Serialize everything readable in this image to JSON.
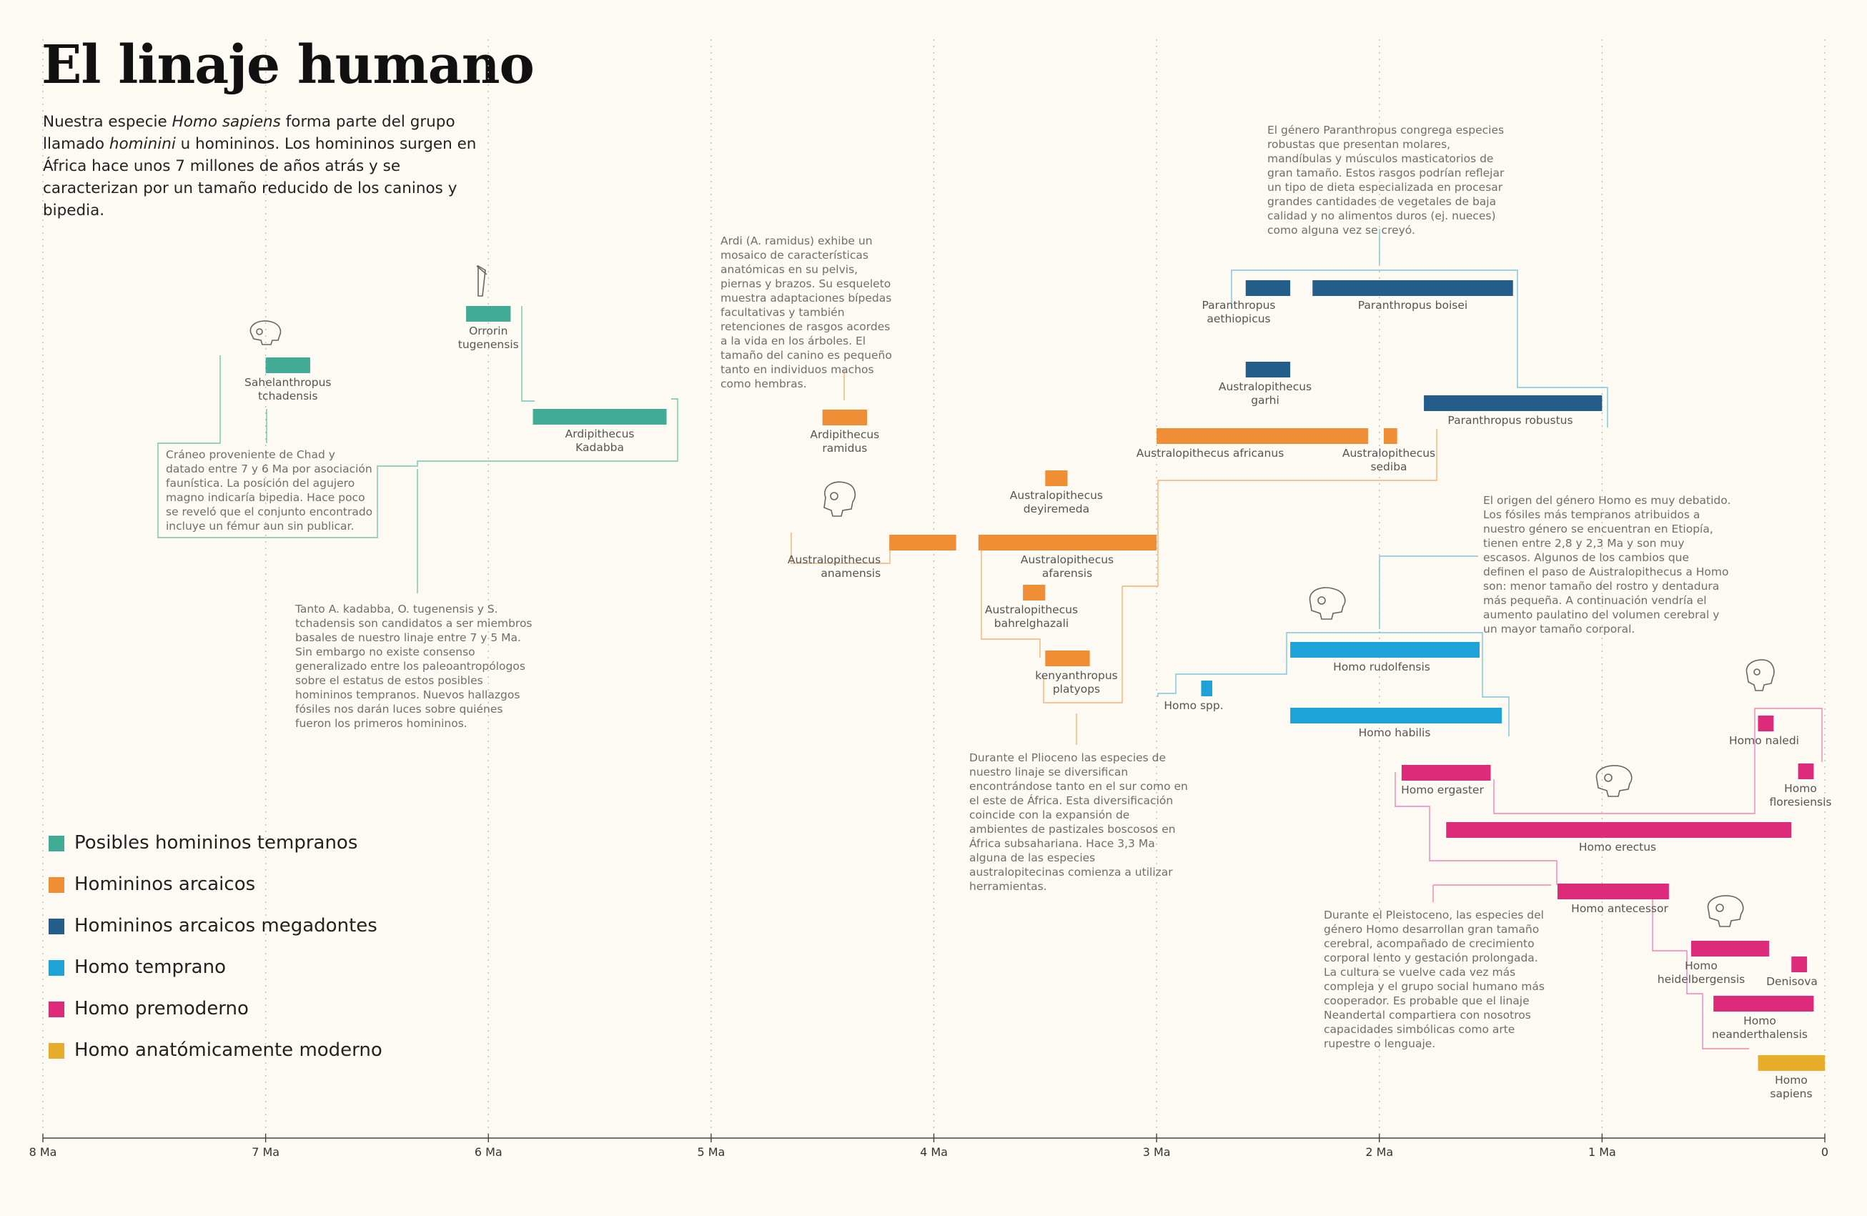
{
  "title": "El linaje humano",
  "intro": {
    "p1": "Nuestra especie ",
    "em1": "Homo sapiens",
    "p2": " forma parte del grupo llamado ",
    "em2": "hominini",
    "p3": " u homininos. Los homininos surgen en África hace unos 7 millones de años atrás y se caracterizan por un tamaño reducido de los caninos y bipedia."
  },
  "colors": {
    "early": "#41ab96",
    "archaic": "#f08e36",
    "megadont": "#245d8a",
    "early_homo": "#1ea3d9",
    "premodern": "#dd2a7b",
    "modern": "#e9ad2c"
  },
  "legend": [
    {
      "label": "Posibles homininos tempranos",
      "color_key": "early"
    },
    {
      "label": "Homininos arcaicos",
      "color_key": "archaic"
    },
    {
      "label": "Homininos arcaicos megadontes",
      "color_key": "megadont"
    },
    {
      "label": "Homo temprano",
      "color_key": "early_homo"
    },
    {
      "label": "Homo premoderno",
      "color_key": "premodern"
    },
    {
      "label": "Homo anatómicamente moderno",
      "color_key": "modern"
    }
  ],
  "annotations": {
    "sahelanthropus": "Cráneo proveniente de Chad y datado entre 7 y 6 Ma por asociación faunística. La posición del agujero magno indicaría bipedia. Hace poco se reveló que el conjunto encontrado incluye un fémur aun sin publicar.",
    "candidates": "Tanto A. kadabba, O. tugenensis y S. tchadensis son candidatos a ser miembros basales de nuestro linaje entre 7 y 5 Ma. Sin embargo no existe consenso generalizado entre los paleoantropólogos sobre el estatus de estos posibles homininos tempranos. Nuevos hallazgos fósiles nos darán luces sobre quiénes fueron los primeros homininos.",
    "ardi": "Ardi (A. ramidus) exhibe un mosaico de características anatómicas en su pelvis, piernas y brazos. Su esqueleto muestra adaptaciones bípedas facultativas y también retenciones de rasgos acordes a la vida en los árboles. El tamaño del canino es pequeño tanto en individuos machos como hembras.",
    "pliocene": "Durante el Plioceno las especies de nuestro linaje se diversifican encontrándose tanto en el sur como en el este de África. Esta diversificación coincide con la expansión de ambientes de pastizales boscosos en África subsahariana. Hace 3,3 Ma alguna de las especies australopitecinas comienza a utilizar herramientas.",
    "paranthropus": "El género Paranthropus congrega especies robustas que presentan molares, mandíbulas y músculos masticatorios de gran tamaño. Estos rasgos podrían reflejar un tipo de dieta especializada en procesar grandes cantidades de vegetales de baja calidad y no alimentos duros (ej. nueces) como alguna vez se creyó.",
    "homo_origin": "El origen del género Homo es muy debatido. Los fósiles más tempranos atribuidos a nuestro género se encuentran en Etiopía, tienen entre 2,8 y 2,3 Ma y son muy escasos. Algunos de los cambios que definen el paso de Australopithecus a Homo son: menor tamaño del rostro y dentadura más pequeña. A continuación vendría el aumento paulatino del volumen cerebral y un mayor tamaño corporal.",
    "pleistocene": "Durante el Pleistoceno, las especies del género Homo desarrollan gran tamaño cerebral, acompañado de crecimiento corporal lento y gestación prolongada. La cultura se vuelve cada vez más compleja y el grupo social humano más cooperador. Es probable que el linaje Neandertal compartiera con nosotros capacidades simbólicas como arte rupestre o lenguaje."
  },
  "chart_data": {
    "type": "bar",
    "subtype": "timeline",
    "x_unit": "Ma",
    "xlim": [
      8,
      0
    ],
    "x_reversed": true,
    "ticks": [
      {
        "value": 8,
        "label": "8 Ma"
      },
      {
        "value": 7,
        "label": "7 Ma"
      },
      {
        "value": 6,
        "label": "6 Ma"
      },
      {
        "value": 5,
        "label": "5 Ma"
      },
      {
        "value": 4,
        "label": "4 Ma"
      },
      {
        "value": 3,
        "label": "3 Ma"
      },
      {
        "value": 2,
        "label": "2 Ma"
      },
      {
        "value": 1,
        "label": "1 Ma"
      },
      {
        "value": 0,
        "label": "0"
      }
    ],
    "species": [
      {
        "name": "Sahelanthropus tchadensis",
        "start": 7.0,
        "end": 6.8,
        "group": "early"
      },
      {
        "name": "Orrorin tugenensis",
        "start": 6.1,
        "end": 5.9,
        "group": "early"
      },
      {
        "name": "Ardipithecus Kadabba",
        "start": 5.8,
        "end": 5.2,
        "group": "early"
      },
      {
        "name": "Ardipithecus ramidus",
        "start": 4.5,
        "end": 4.3,
        "group": "archaic"
      },
      {
        "name": "Australopithecus anamensis",
        "start": 4.2,
        "end": 3.9,
        "group": "archaic"
      },
      {
        "name": "Australopithecus deyiremeda",
        "start": 3.5,
        "end": 3.4,
        "group": "archaic"
      },
      {
        "name": "Australopithecus afarensis",
        "start": 3.8,
        "end": 3.0,
        "group": "archaic"
      },
      {
        "name": "Australopithecus bahrelghazali",
        "start": 3.6,
        "end": 3.5,
        "group": "archaic"
      },
      {
        "name": "kenyanthropus platyops",
        "start": 3.5,
        "end": 3.3,
        "group": "archaic"
      },
      {
        "name": "Australopithecus africanus",
        "start": 3.0,
        "end": 2.05,
        "group": "archaic"
      },
      {
        "name": "Australopithecus sediba",
        "start": 1.98,
        "end": 1.92,
        "group": "archaic"
      },
      {
        "name": "Paranthropus aethiopicus",
        "start": 2.6,
        "end": 2.4,
        "group": "megadont"
      },
      {
        "name": "Paranthropus boisei",
        "start": 2.3,
        "end": 1.4,
        "group": "megadont"
      },
      {
        "name": "Australopithecus garhi",
        "start": 2.6,
        "end": 2.4,
        "group": "megadont"
      },
      {
        "name": "Paranthropus robustus",
        "start": 1.8,
        "end": 1.0,
        "group": "megadont"
      },
      {
        "name": "Homo spp.",
        "start": 2.8,
        "end": 2.75,
        "group": "early_homo"
      },
      {
        "name": "Homo rudolfensis",
        "start": 2.4,
        "end": 1.55,
        "group": "early_homo"
      },
      {
        "name": "Homo habilis",
        "start": 2.4,
        "end": 1.45,
        "group": "early_homo"
      },
      {
        "name": "Homo ergaster",
        "start": 1.9,
        "end": 1.5,
        "group": "premodern"
      },
      {
        "name": "Homo erectus",
        "start": 1.7,
        "end": 0.15,
        "group": "premodern"
      },
      {
        "name": "Homo naledi",
        "start": 0.3,
        "end": 0.23,
        "group": "premodern"
      },
      {
        "name": "Homo floresiensis",
        "start": 0.12,
        "end": 0.05,
        "group": "premodern"
      },
      {
        "name": "Homo antecessor",
        "start": 1.2,
        "end": 0.7,
        "group": "premodern"
      },
      {
        "name": "Homo heidelbergensis",
        "start": 0.6,
        "end": 0.25,
        "group": "premodern"
      },
      {
        "name": "Denisova",
        "start": 0.15,
        "end": 0.08,
        "group": "premodern"
      },
      {
        "name": "Homo neanderthalensis",
        "start": 0.5,
        "end": 0.05,
        "group": "premodern"
      },
      {
        "name": "Homo sapiens",
        "start": 0.3,
        "end": 0.0,
        "group": "modern"
      }
    ]
  }
}
